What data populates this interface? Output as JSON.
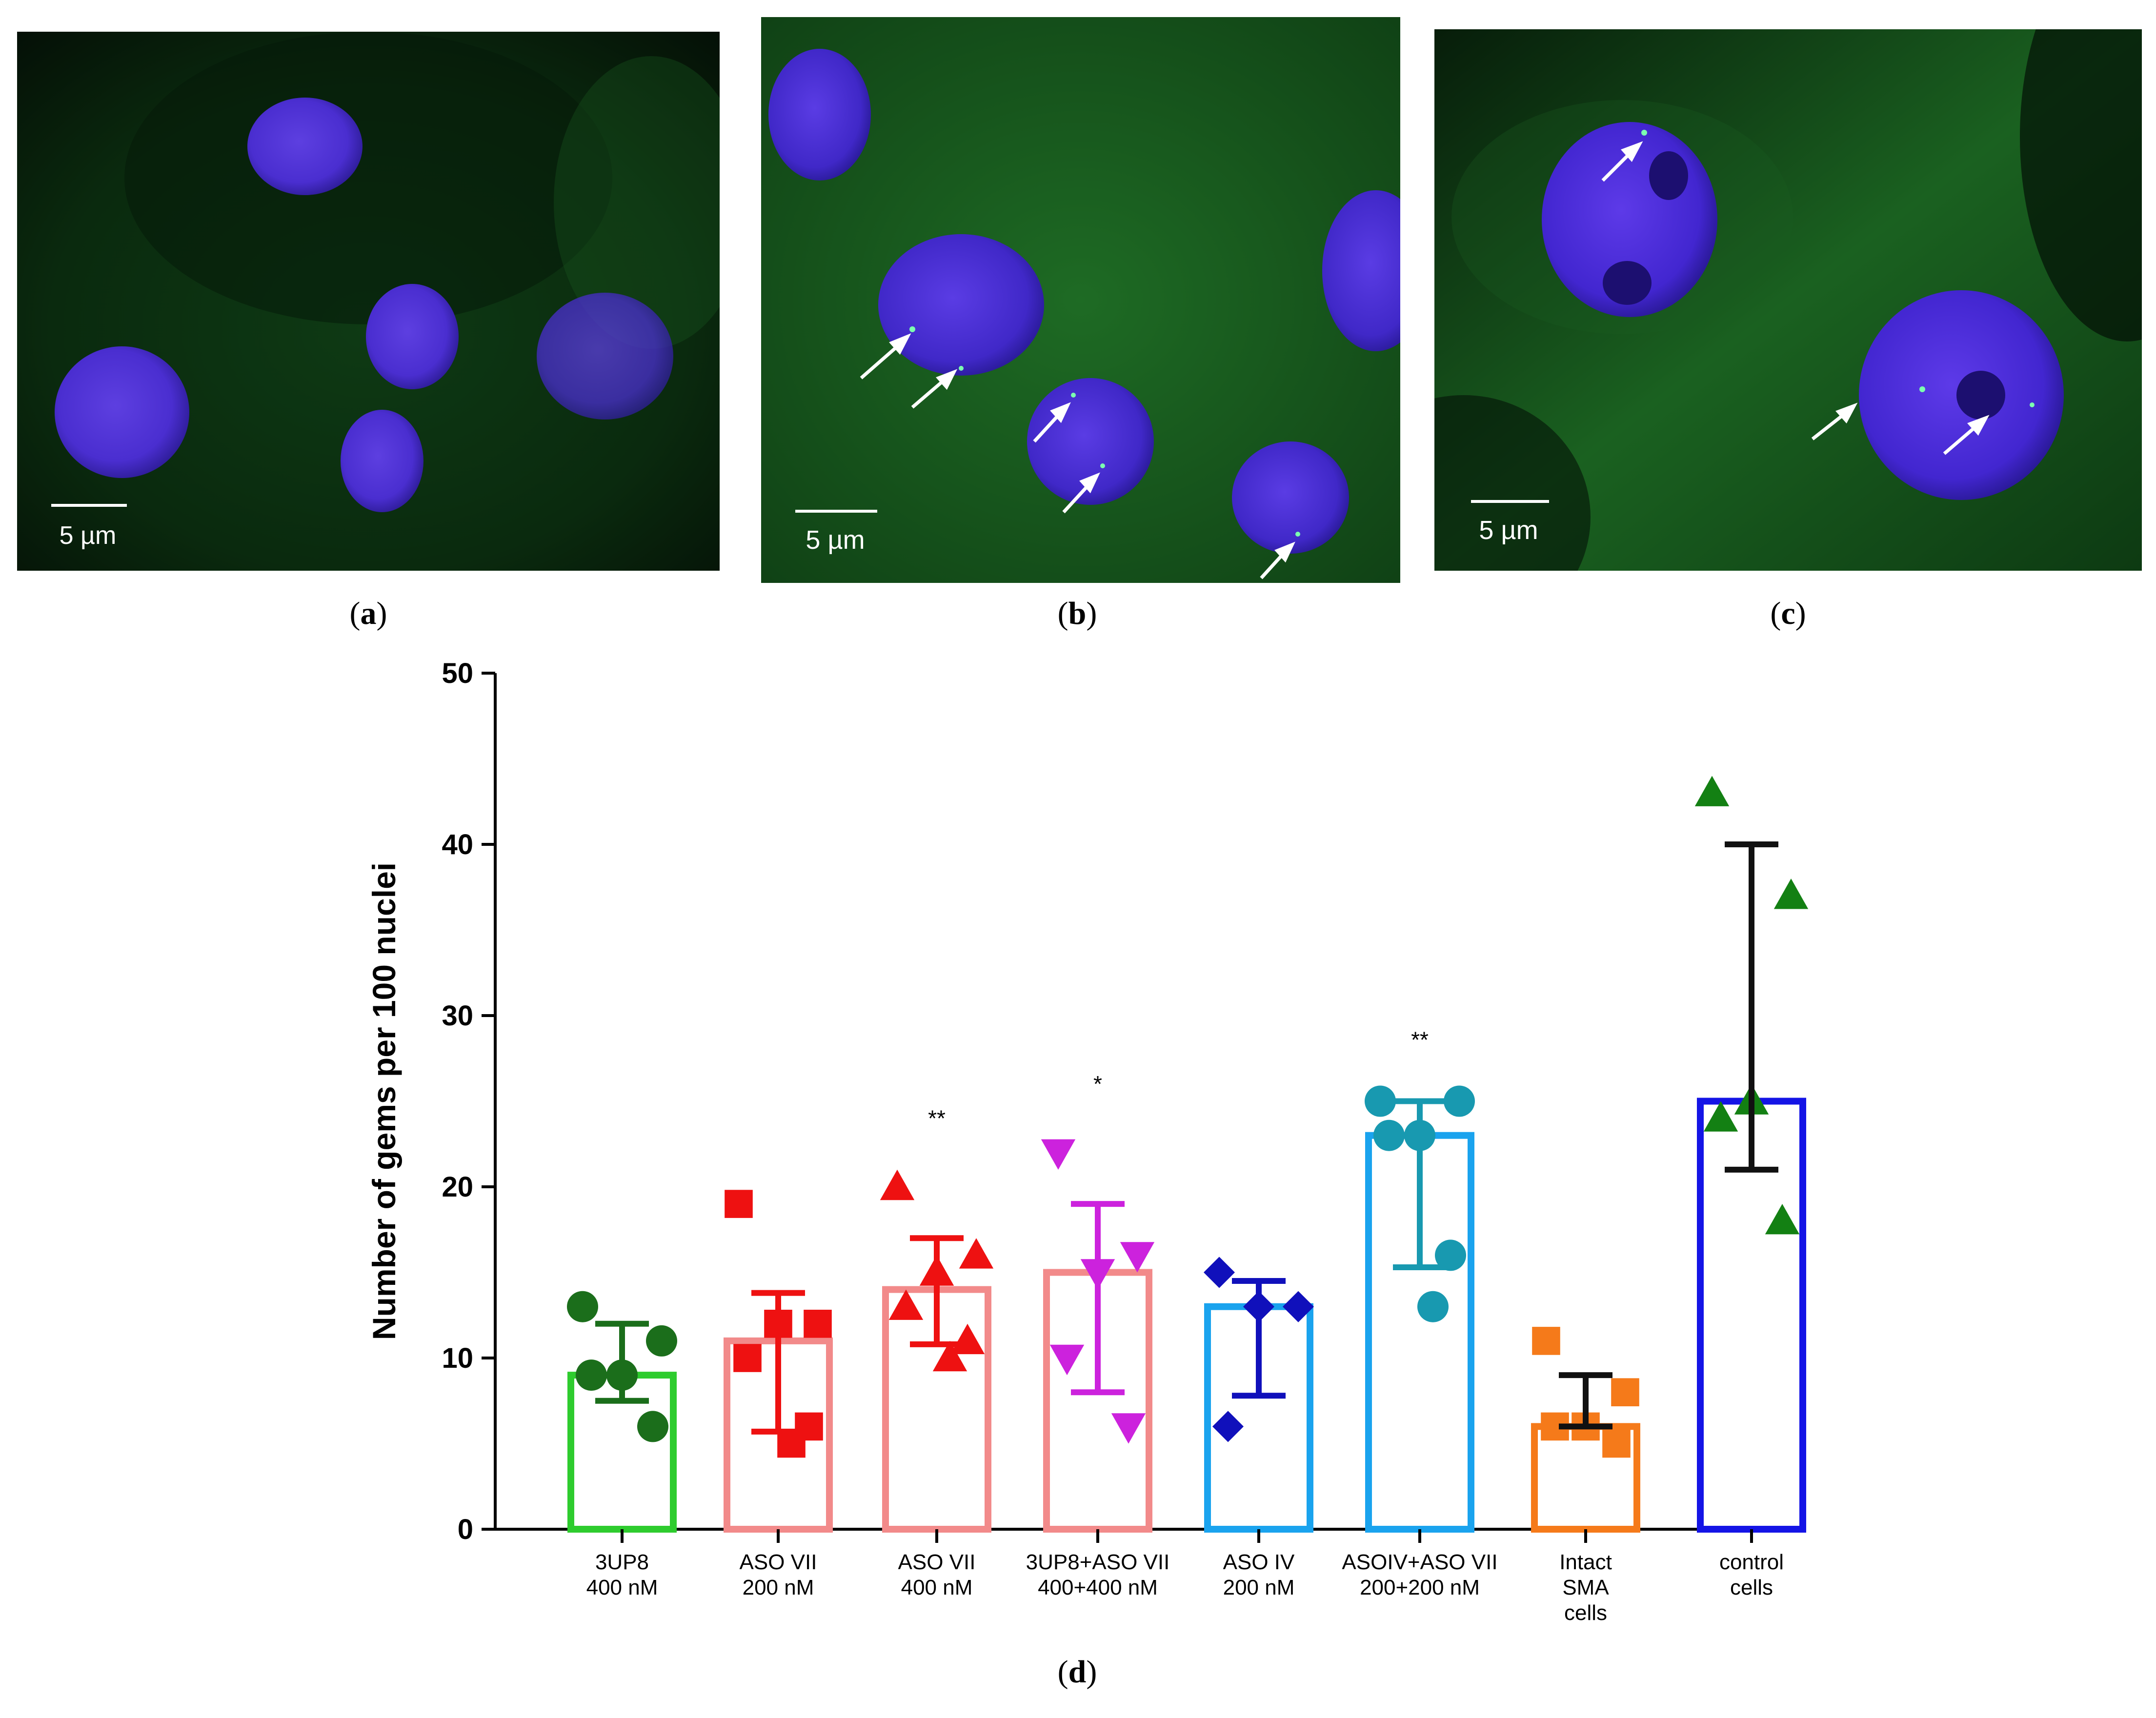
{
  "panels": [
    {
      "id": "a",
      "label_open": "(",
      "label_letter": "a",
      "label_close": ")",
      "scale_text": "5 µm"
    },
    {
      "id": "b",
      "label_open": "(",
      "label_letter": "b",
      "label_close": ")",
      "scale_text": "5 µm"
    },
    {
      "id": "c",
      "label_open": "(",
      "label_letter": "c",
      "label_close": ")",
      "scale_text": "5 µm"
    },
    {
      "id": "d",
      "label_open": "(",
      "label_letter": "d",
      "label_close": ")"
    }
  ],
  "chart_data": {
    "type": "bar",
    "title": "",
    "ylabel": "Number of gems per 100 nuclei",
    "xlabel": "",
    "ylim": [
      0,
      50
    ],
    "yticks": [
      0,
      10,
      20,
      30,
      40,
      50
    ],
    "categories": [
      {
        "lines": [
          "3UP8",
          "400 nM"
        ],
        "mean": 9,
        "err_low": 7.5,
        "err_high": 12,
        "points": [
          13,
          11,
          9,
          9,
          6
        ],
        "marker": "circle",
        "bar_color": "#2ecc2e",
        "point_color": "#1b6e1b",
        "err_color": "#1b6e1b",
        "sig": ""
      },
      {
        "lines": [
          "ASO VII",
          "200 nM"
        ],
        "mean": 11,
        "err_low": 5.7,
        "err_high": 13.8,
        "points": [
          19,
          12,
          12,
          10,
          6,
          5
        ],
        "marker": "square",
        "bar_color": "#f28a8a",
        "point_color": "#ee1111",
        "err_color": "#ee1111",
        "sig": ""
      },
      {
        "lines": [
          "ASO VII",
          "400 nM"
        ],
        "mean": 14,
        "err_low": 10.8,
        "err_high": 17,
        "points": [
          20,
          16,
          15,
          13,
          11,
          10
        ],
        "marker": "triangle",
        "bar_color": "#f28a8a",
        "point_color": "#ee1111",
        "err_color": "#ee1111",
        "sig": "**"
      },
      {
        "lines": [
          "3UP8+ASO VII",
          "400+400 nM"
        ],
        "mean": 15,
        "err_low": 8,
        "err_high": 19,
        "points": [
          22,
          16,
          15,
          10,
          6
        ],
        "marker": "triangle-down",
        "bar_color": "#f28a8a",
        "point_color": "#cc22dd",
        "err_color": "#cc22dd",
        "sig": "*"
      },
      {
        "lines": [
          "ASO IV",
          "200 nM"
        ],
        "mean": 13,
        "err_low": 7.8,
        "err_high": 14.5,
        "points": [
          15,
          13,
          13,
          6
        ],
        "marker": "diamond",
        "bar_color": "#1aa3ee",
        "point_color": "#1010bb",
        "err_color": "#1010bb",
        "sig": ""
      },
      {
        "lines": [
          "ASOIV+ASO VII",
          "200+200 nM"
        ],
        "mean": 23,
        "err_low": 15.3,
        "err_high": 25,
        "points": [
          25,
          25,
          23,
          23,
          16,
          13
        ],
        "marker": "circle",
        "bar_color": "#1aa3ee",
        "point_color": "#1899b0",
        "err_color": "#1899b0",
        "sig": "**"
      },
      {
        "lines": [
          "Intact",
          "SMA",
          "cells"
        ],
        "mean": 6,
        "err_low": 6,
        "err_high": 9,
        "points": [
          11,
          8,
          6,
          6,
          5
        ],
        "marker": "square",
        "bar_color": "#f57a1a",
        "point_color": "#f57a1a",
        "err_color": "#111111",
        "sig": ""
      },
      {
        "lines": [
          "control",
          "cells"
        ],
        "mean": 25,
        "err_low": 21,
        "err_high": 40,
        "points": [
          43,
          37,
          25,
          24,
          18
        ],
        "marker": "triangle",
        "bar_color": "#1414e6",
        "point_color": "#138013",
        "err_color": "#111111",
        "sig": ""
      }
    ]
  }
}
